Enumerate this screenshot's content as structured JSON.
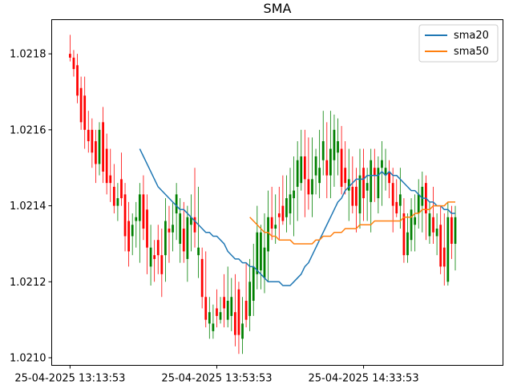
{
  "chart_data": {
    "type": "candlestick",
    "title": "SMA",
    "xlabel": "",
    "ylabel": "",
    "ylim": [
      1.02098,
      1.02189
    ],
    "xlim": [
      -5.0,
      118.0
    ],
    "x_ticks": [
      {
        "index": 0,
        "label": "25-04-2025 13:13:53"
      },
      {
        "index": 40,
        "label": "25-04-2025 13:53:53"
      },
      {
        "index": 80,
        "label": "25-04-2025 14:33:53"
      }
    ],
    "y_ticks": [
      "1.0210",
      "1.0212",
      "1.0214",
      "1.0216",
      "1.0218"
    ],
    "grid": false,
    "legend": {
      "position": "top-right",
      "entries": [
        {
          "name": "sma20",
          "color": "#1f77b4"
        },
        {
          "name": "sma50",
          "color": "#ff7f0e"
        }
      ]
    },
    "colors": {
      "up": "#008000",
      "down": "#ff0000"
    },
    "candles": [
      [
        1.0218,
        1.02185,
        1.02178,
        1.02179
      ],
      [
        1.02179,
        1.02181,
        1.02174,
        1.02176
      ],
      [
        1.02177,
        1.0218,
        1.02167,
        1.02169
      ],
      [
        1.02171,
        1.02174,
        1.0216,
        1.02162
      ],
      [
        1.02169,
        1.02174,
        1.02155,
        1.0216
      ],
      [
        1.0216,
        1.02165,
        1.02154,
        1.02157
      ],
      [
        1.0216,
        1.02163,
        1.0215,
        1.02154
      ],
      [
        1.02157,
        1.0216,
        1.02146,
        1.02151
      ],
      [
        1.02151,
        1.02162,
        1.02148,
        1.0216
      ],
      [
        1.02162,
        1.02166,
        1.02146,
        1.02149
      ],
      [
        1.02155,
        1.02159,
        1.02143,
        1.02146
      ],
      [
        1.02148,
        1.02155,
        1.02141,
        1.02146
      ],
      [
        1.02145,
        1.02151,
        1.02138,
        1.0214
      ],
      [
        1.0214,
        1.02146,
        1.02136,
        1.02142
      ],
      [
        1.02147,
        1.02154,
        1.0214,
        1.02142
      ],
      [
        1.02143,
        1.02146,
        1.02128,
        1.02132
      ],
      [
        1.02136,
        1.02141,
        1.02124,
        1.02128
      ],
      [
        1.02132,
        1.02138,
        1.02127,
        1.02135
      ],
      [
        1.02136,
        1.02141,
        1.02129,
        1.02137
      ],
      [
        1.02136,
        1.02146,
        1.02125,
        1.02143
      ],
      [
        1.02143,
        1.02148,
        1.02131,
        1.02134
      ],
      [
        1.02139,
        1.02143,
        1.02122,
        1.02129
      ],
      [
        1.02124,
        1.02135,
        1.02119,
        1.02129
      ],
      [
        1.02127,
        1.02131,
        1.0212,
        1.02126
      ],
      [
        1.02131,
        1.02135,
        1.02122,
        1.02127
      ],
      [
        1.02127,
        1.02134,
        1.02116,
        1.02122
      ],
      [
        1.02127,
        1.02142,
        1.0212,
        1.02136
      ],
      [
        1.02134,
        1.0214,
        1.02125,
        1.02133
      ],
      [
        1.02133,
        1.02141,
        1.02128,
        1.02135
      ],
      [
        1.02138,
        1.02146,
        1.02131,
        1.02143
      ],
      [
        1.0213,
        1.02142,
        1.02125,
        1.02138
      ],
      [
        1.02134,
        1.02141,
        1.02125,
        1.02128
      ],
      [
        1.02126,
        1.0214,
        1.0212,
        1.02137
      ],
      [
        1.02135,
        1.02143,
        1.02128,
        1.02137
      ],
      [
        1.02137,
        1.0215,
        1.02129,
        1.02133
      ],
      [
        1.02127,
        1.02145,
        1.02121,
        1.02129
      ],
      [
        1.02126,
        1.02129,
        1.02113,
        1.02116
      ],
      [
        1.02116,
        1.02128,
        1.02108,
        1.0211
      ],
      [
        1.02109,
        1.02116,
        1.02105,
        1.02112
      ],
      [
        1.02107,
        1.02114,
        1.02105,
        1.02109
      ],
      [
        1.02113,
        1.02118,
        1.02108,
        1.02111
      ],
      [
        1.0211,
        1.02116,
        1.02109,
        1.02112
      ],
      [
        1.02116,
        1.02122,
        1.02108,
        1.02113
      ],
      [
        1.0211,
        1.02124,
        1.02108,
        1.02115
      ],
      [
        1.02111,
        1.02121,
        1.02107,
        1.02116
      ],
      [
        1.02112,
        1.02122,
        1.02103,
        1.02106
      ],
      [
        1.02118,
        1.0212,
        1.02101,
        1.02106
      ],
      [
        1.02105,
        1.02116,
        1.02101,
        1.02109
      ],
      [
        1.02115,
        1.02125,
        1.02108,
        1.0211
      ],
      [
        1.02111,
        1.02126,
        1.02107,
        1.0212
      ],
      [
        1.02115,
        1.0213,
        1.02111,
        1.02124
      ],
      [
        1.02122,
        1.0214,
        1.02118,
        1.02133
      ],
      [
        1.02123,
        1.02135,
        1.02118,
        1.02133
      ],
      [
        1.02121,
        1.02138,
        1.02117,
        1.02129
      ],
      [
        1.02128,
        1.02144,
        1.0212,
        1.02137
      ],
      [
        1.02137,
        1.02145,
        1.02131,
        1.02134
      ],
      [
        1.02134,
        1.02143,
        1.0213,
        1.02135
      ],
      [
        1.02138,
        1.02145,
        1.02131,
        1.02137
      ],
      [
        1.0214,
        1.02148,
        1.02135,
        1.02136
      ],
      [
        1.02137,
        1.02148,
        1.02133,
        1.02142
      ],
      [
        1.02138,
        1.0215,
        1.02135,
        1.02143
      ],
      [
        1.02142,
        1.02153,
        1.02132,
        1.02144
      ],
      [
        1.02145,
        1.02157,
        1.02136,
        1.02152
      ],
      [
        1.02146,
        1.0216,
        1.02144,
        1.02153
      ],
      [
        1.02153,
        1.0216,
        1.02137,
        1.02147
      ],
      [
        1.02147,
        1.02158,
        1.02139,
        1.02143
      ],
      [
        1.02143,
        1.02158,
        1.02137,
        1.02147
      ],
      [
        1.02148,
        1.02155,
        1.02143,
        1.02153
      ],
      [
        1.02146,
        1.0216,
        1.02142,
        1.0215
      ],
      [
        1.02152,
        1.02165,
        1.02148,
        1.02157
      ],
      [
        1.02152,
        1.02162,
        1.02142,
        1.02148
      ],
      [
        1.02148,
        1.02165,
        1.02142,
        1.02155
      ],
      [
        1.02152,
        1.02164,
        1.02145,
        1.0216
      ],
      [
        1.02154,
        1.02163,
        1.02148,
        1.02157
      ],
      [
        1.02155,
        1.02161,
        1.02143,
        1.02145
      ],
      [
        1.0215,
        1.02157,
        1.02143,
        1.02146
      ],
      [
        1.02144,
        1.02155,
        1.02136,
        1.02147
      ],
      [
        1.02145,
        1.02153,
        1.02138,
        1.0214
      ],
      [
        1.02145,
        1.0215,
        1.02133,
        1.0214
      ],
      [
        1.02138,
        1.02155,
        1.02134,
        1.02148
      ],
      [
        1.0215,
        1.02155,
        1.02136,
        1.02142
      ],
      [
        1.02144,
        1.0215,
        1.02136,
        1.02146
      ],
      [
        1.02141,
        1.02155,
        1.02133,
        1.02152
      ],
      [
        1.0215,
        1.02155,
        1.02141,
        1.02148
      ],
      [
        1.02142,
        1.02153,
        1.02138,
        1.0215
      ],
      [
        1.0215,
        1.02157,
        1.0214,
        1.02152
      ],
      [
        1.02148,
        1.02155,
        1.02144,
        1.0215
      ],
      [
        1.02149,
        1.02152,
        1.02142,
        1.02146
      ],
      [
        1.02146,
        1.0215,
        1.02133,
        1.0214
      ],
      [
        1.02141,
        1.02147,
        1.02137,
        1.02138
      ],
      [
        1.0214,
        1.0215,
        1.02134,
        1.02143
      ],
      [
        1.02138,
        1.02142,
        1.02125,
        1.02127
      ],
      [
        1.02127,
        1.02138,
        1.02125,
        1.02133
      ],
      [
        1.02131,
        1.02142,
        1.02128,
        1.02139
      ],
      [
        1.02135,
        1.02143,
        1.02128,
        1.02137
      ],
      [
        1.02138,
        1.02147,
        1.02134,
        1.02143
      ],
      [
        1.0214,
        1.02149,
        1.02133,
        1.02145
      ],
      [
        1.02146,
        1.02148,
        1.02131,
        1.02138
      ],
      [
        1.02132,
        1.02141,
        1.0213,
        1.02138
      ],
      [
        1.02137,
        1.02145,
        1.0213,
        1.02133
      ],
      [
        1.02132,
        1.02138,
        1.02127,
        1.02134
      ],
      [
        1.02135,
        1.0214,
        1.02122,
        1.02124
      ],
      [
        1.02129,
        1.02138,
        1.02119,
        1.02124
      ],
      [
        1.0212,
        1.02141,
        1.02119,
        1.02137
      ],
      [
        1.02137,
        1.0214,
        1.02126,
        1.0213
      ],
      [
        1.0213,
        1.0214,
        1.02123,
        1.02137
      ]
    ],
    "series": [
      {
        "name": "sma20",
        "color": "#1f77b4",
        "start": 19,
        "values": [
          1.02155,
          1.02153,
          1.02151,
          1.02149,
          1.02147,
          1.02145,
          1.02144,
          1.02143,
          1.02142,
          1.02141,
          1.0214,
          1.02139,
          1.02139,
          1.02138,
          1.02137,
          1.02136,
          1.02135,
          1.02134,
          1.02133,
          1.02133,
          1.02132,
          1.02132,
          1.02131,
          1.0213,
          1.02128,
          1.02127,
          1.02126,
          1.02126,
          1.02125,
          1.02125,
          1.02124,
          1.02124,
          1.02123,
          1.02122,
          1.02121,
          1.0212,
          1.0212,
          1.0212,
          1.0212,
          1.02119,
          1.02119,
          1.02119,
          1.0212,
          1.02121,
          1.02122,
          1.02124,
          1.02125,
          1.02127,
          1.02129,
          1.02131,
          1.02133,
          1.02135,
          1.02137,
          1.02139,
          1.02141,
          1.02142,
          1.02144,
          1.02145,
          1.02146,
          1.02147,
          1.02147,
          1.02147,
          1.02148,
          1.02148,
          1.02148,
          1.02148,
          1.02149,
          1.02148,
          1.02149,
          1.02148,
          1.02148,
          1.02147,
          1.02146,
          1.02145,
          1.02144,
          1.02144,
          1.02143,
          1.02142,
          1.02142,
          1.02141,
          1.02141,
          1.0214,
          1.0214,
          1.02139,
          1.02139,
          1.02138,
          1.02138
        ]
      },
      {
        "name": "sma50",
        "color": "#ff7f0e",
        "start": 49,
        "values": [
          1.02137,
          1.02136,
          1.02135,
          1.02134,
          1.02133,
          1.02133,
          1.02132,
          1.02132,
          1.02131,
          1.02131,
          1.02131,
          1.02131,
          1.0213,
          1.0213,
          1.0213,
          1.0213,
          1.0213,
          1.0213,
          1.02131,
          1.02131,
          1.02132,
          1.02132,
          1.02132,
          1.02133,
          1.02133,
          1.02133,
          1.02134,
          1.02134,
          1.02134,
          1.02134,
          1.02135,
          1.02135,
          1.02135,
          1.02135,
          1.02136,
          1.02136,
          1.02136,
          1.02136,
          1.02136,
          1.02136,
          1.02136,
          1.02136,
          1.02137,
          1.02137,
          1.02137,
          1.02138,
          1.02138,
          1.02139,
          1.02139,
          1.02139,
          1.0214,
          1.0214,
          1.0214,
          1.0214,
          1.02141,
          1.02141,
          1.02141
        ]
      }
    ]
  }
}
